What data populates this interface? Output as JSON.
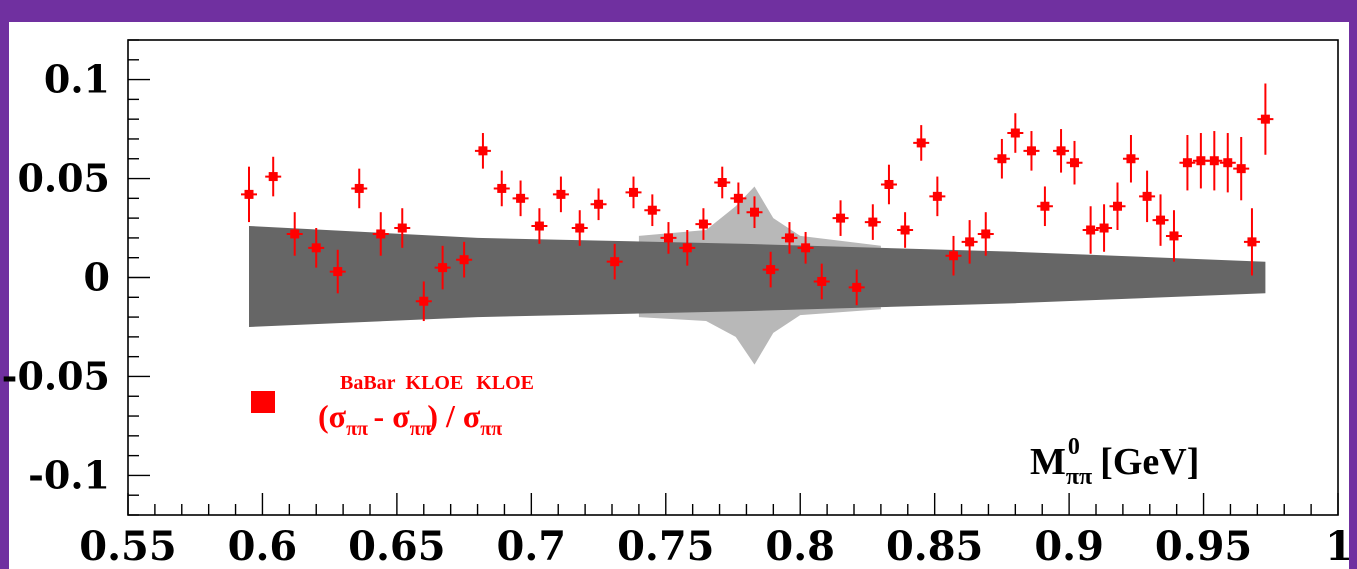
{
  "chart_data": {
    "type": "scatter",
    "xlabel": "M",
    "xlabel_sup": "0",
    "xlabel_sub": "ππ",
    "xlabel_unit": "[GeV]",
    "xlim": [
      0.55,
      1.0
    ],
    "ylim": [
      -0.12,
      0.12
    ],
    "x_ticks": [
      {
        "value": 0.55,
        "label": "0.55"
      },
      {
        "value": 0.6,
        "label": "0.6"
      },
      {
        "value": 0.65,
        "label": "0.65"
      },
      {
        "value": 0.7,
        "label": "0.7"
      },
      {
        "value": 0.75,
        "label": "0.75"
      },
      {
        "value": 0.8,
        "label": "0.8"
      },
      {
        "value": 0.85,
        "label": "0.85"
      },
      {
        "value": 0.9,
        "label": "0.9"
      },
      {
        "value": 0.95,
        "label": "0.95"
      },
      {
        "value": 1.0,
        "label": "1"
      }
    ],
    "y_ticks": [
      {
        "value": 0.1,
        "label": "0.1"
      },
      {
        "value": 0.05,
        "label": "0.05"
      },
      {
        "value": 0.0,
        "label": "0"
      },
      {
        "value": -0.05,
        "label": "-0.05"
      },
      {
        "value": -0.1,
        "label": "-0.1"
      }
    ],
    "legend": {
      "placement": "bottom-left",
      "color": "#ff0000",
      "parts": {
        "open": "(σ",
        "sub1": "ππ",
        "sup1": "BaBar",
        "minus": " - σ",
        "sub2": "ππ",
        "sup2": "KLOE",
        "close": ") / σ",
        "sub3": "ππ",
        "sup3": "KLOE"
      }
    },
    "series": [
      {
        "color": "#ff0000",
        "points": [
          {
            "x": 0.595,
            "y": 0.042,
            "err": 0.014
          },
          {
            "x": 0.604,
            "y": 0.051,
            "err": 0.01
          },
          {
            "x": 0.612,
            "y": 0.022,
            "err": 0.011
          },
          {
            "x": 0.62,
            "y": 0.015,
            "err": 0.01
          },
          {
            "x": 0.628,
            "y": 0.003,
            "err": 0.011
          },
          {
            "x": 0.636,
            "y": 0.045,
            "err": 0.01
          },
          {
            "x": 0.644,
            "y": 0.022,
            "err": 0.011
          },
          {
            "x": 0.652,
            "y": 0.025,
            "err": 0.01
          },
          {
            "x": 0.66,
            "y": -0.012,
            "err": 0.01
          },
          {
            "x": 0.667,
            "y": 0.005,
            "err": 0.011
          },
          {
            "x": 0.675,
            "y": 0.009,
            "err": 0.009
          },
          {
            "x": 0.682,
            "y": 0.064,
            "err": 0.009
          },
          {
            "x": 0.689,
            "y": 0.045,
            "err": 0.009
          },
          {
            "x": 0.696,
            "y": 0.04,
            "err": 0.009
          },
          {
            "x": 0.703,
            "y": 0.026,
            "err": 0.009
          },
          {
            "x": 0.711,
            "y": 0.042,
            "err": 0.009
          },
          {
            "x": 0.718,
            "y": 0.025,
            "err": 0.009
          },
          {
            "x": 0.725,
            "y": 0.037,
            "err": 0.008
          },
          {
            "x": 0.731,
            "y": 0.008,
            "err": 0.009
          },
          {
            "x": 0.738,
            "y": 0.043,
            "err": 0.008
          },
          {
            "x": 0.745,
            "y": 0.034,
            "err": 0.008
          },
          {
            "x": 0.751,
            "y": 0.02,
            "err": 0.008
          },
          {
            "x": 0.758,
            "y": 0.015,
            "err": 0.009
          },
          {
            "x": 0.764,
            "y": 0.027,
            "err": 0.008
          },
          {
            "x": 0.771,
            "y": 0.048,
            "err": 0.008
          },
          {
            "x": 0.777,
            "y": 0.04,
            "err": 0.008
          },
          {
            "x": 0.783,
            "y": 0.033,
            "err": 0.008
          },
          {
            "x": 0.789,
            "y": 0.004,
            "err": 0.009
          },
          {
            "x": 0.796,
            "y": 0.02,
            "err": 0.008
          },
          {
            "x": 0.802,
            "y": 0.015,
            "err": 0.008
          },
          {
            "x": 0.808,
            "y": -0.002,
            "err": 0.009
          },
          {
            "x": 0.815,
            "y": 0.03,
            "err": 0.009
          },
          {
            "x": 0.821,
            "y": -0.005,
            "err": 0.009
          },
          {
            "x": 0.827,
            "y": 0.028,
            "err": 0.009
          },
          {
            "x": 0.833,
            "y": 0.047,
            "err": 0.01
          },
          {
            "x": 0.839,
            "y": 0.024,
            "err": 0.009
          },
          {
            "x": 0.845,
            "y": 0.068,
            "err": 0.009
          },
          {
            "x": 0.851,
            "y": 0.041,
            "err": 0.01
          },
          {
            "x": 0.857,
            "y": 0.011,
            "err": 0.01
          },
          {
            "x": 0.863,
            "y": 0.018,
            "err": 0.011
          },
          {
            "x": 0.869,
            "y": 0.022,
            "err": 0.011
          },
          {
            "x": 0.875,
            "y": 0.06,
            "err": 0.01
          },
          {
            "x": 0.88,
            "y": 0.073,
            "err": 0.01
          },
          {
            "x": 0.886,
            "y": 0.064,
            "err": 0.01
          },
          {
            "x": 0.891,
            "y": 0.036,
            "err": 0.01
          },
          {
            "x": 0.897,
            "y": 0.064,
            "err": 0.011
          },
          {
            "x": 0.902,
            "y": 0.058,
            "err": 0.011
          },
          {
            "x": 0.908,
            "y": 0.024,
            "err": 0.012
          },
          {
            "x": 0.913,
            "y": 0.025,
            "err": 0.012
          },
          {
            "x": 0.918,
            "y": 0.036,
            "err": 0.012
          },
          {
            "x": 0.923,
            "y": 0.06,
            "err": 0.012
          },
          {
            "x": 0.929,
            "y": 0.041,
            "err": 0.013
          },
          {
            "x": 0.934,
            "y": 0.029,
            "err": 0.013
          },
          {
            "x": 0.939,
            "y": 0.021,
            "err": 0.013
          },
          {
            "x": 0.944,
            "y": 0.058,
            "err": 0.014
          },
          {
            "x": 0.949,
            "y": 0.059,
            "err": 0.014
          },
          {
            "x": 0.954,
            "y": 0.059,
            "err": 0.015
          },
          {
            "x": 0.959,
            "y": 0.058,
            "err": 0.015
          },
          {
            "x": 0.964,
            "y": 0.055,
            "err": 0.016
          },
          {
            "x": 0.968,
            "y": 0.018,
            "err": 0.017
          },
          {
            "x": 0.973,
            "y": 0.08,
            "err": 0.018
          }
        ]
      }
    ],
    "band_dark": {
      "color": "#666666",
      "points": [
        {
          "x": 0.595,
          "hi": 0.026,
          "lo": -0.025
        },
        {
          "x": 0.68,
          "hi": 0.02,
          "lo": -0.02
        },
        {
          "x": 0.78,
          "hi": 0.017,
          "lo": -0.017
        },
        {
          "x": 0.88,
          "hi": 0.013,
          "lo": -0.013
        },
        {
          "x": 0.973,
          "hi": 0.008,
          "lo": -0.008
        }
      ]
    },
    "band_light": {
      "color": "#b8b8b8",
      "points": [
        {
          "x": 0.74,
          "hi": 0.021,
          "lo": -0.02
        },
        {
          "x": 0.765,
          "hi": 0.024,
          "lo": -0.022
        },
        {
          "x": 0.776,
          "hi": 0.036,
          "lo": -0.03
        },
        {
          "x": 0.783,
          "hi": 0.046,
          "lo": -0.044
        },
        {
          "x": 0.79,
          "hi": 0.03,
          "lo": -0.028
        },
        {
          "x": 0.8,
          "hi": 0.021,
          "lo": -0.019
        },
        {
          "x": 0.83,
          "hi": 0.016,
          "lo": -0.016
        }
      ]
    }
  }
}
